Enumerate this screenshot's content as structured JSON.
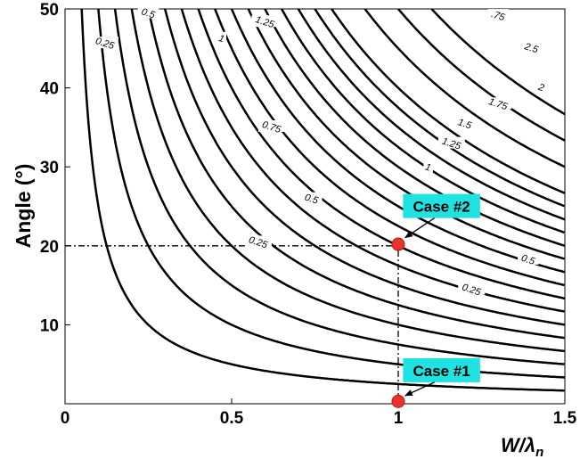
{
  "chart_data": {
    "type": "line",
    "subtype": "contour",
    "title": "",
    "xlabel": "W/λ",
    "xlabel_subscript": "n",
    "ylabel": "Angle (°)",
    "xlim": [
      0,
      1.5
    ],
    "ylim": [
      0,
      50
    ],
    "x_ticks": [
      "0",
      "0.5",
      "1",
      "1.5"
    ],
    "y_ticks": [
      "10",
      "20",
      "30",
      "40",
      "50"
    ],
    "grid": false,
    "contour_constants": [
      0.125,
      0.25,
      0.375,
      0.5,
      0.625,
      0.75,
      0.875,
      1.0,
      1.125,
      1.25,
      1.375,
      1.5,
      1.625,
      1.75,
      1.875,
      2.0,
      2.25,
      2.5,
      2.75
    ],
    "contour_labels": [
      {
        "text": "0.25",
        "x": 0.12,
        "y": 45.7
      },
      {
        "text": "0.5",
        "x": 0.25,
        "y": 49.5
      },
      {
        "text": "1",
        "x": 0.47,
        "y": 46.3
      },
      {
        "text": "1.25",
        "x": 0.6,
        "y": 48.4
      },
      {
        "text": "0.75",
        "x": 0.62,
        "y": 35.1
      },
      {
        "text": "0.5",
        "x": 0.74,
        "y": 26.0
      },
      {
        "text": "0.25",
        "x": 0.58,
        "y": 20.5
      },
      {
        "text": ".75",
        "x": 1.3,
        "y": 49.2
      },
      {
        "text": "2.5",
        "x": 1.4,
        "y": 45.1
      },
      {
        "text": "2",
        "x": 1.43,
        "y": 40.1
      },
      {
        "text": "1.75",
        "x": 1.3,
        "y": 38.0
      },
      {
        "text": "1.5",
        "x": 1.2,
        "y": 35.5
      },
      {
        "text": "1.25",
        "x": 1.16,
        "y": 33.0
      },
      {
        "text": "1",
        "x": 1.09,
        "y": 30.0
      },
      {
        "text": "0.5",
        "x": 1.39,
        "y": 18.3
      },
      {
        "text": "0.25",
        "x": 1.22,
        "y": 14.5
      }
    ],
    "reference_lines": [
      {
        "x": [
          0,
          1.0
        ],
        "y": [
          20,
          20
        ],
        "style": "dash-dot"
      },
      {
        "x": [
          1.0,
          1.0
        ],
        "y": [
          0,
          20
        ],
        "style": "dash-dot"
      }
    ],
    "points": [
      {
        "name": "Case #1",
        "x": 1.0,
        "y": 0.3,
        "color": "#e8342c"
      },
      {
        "name": "Case #2",
        "x": 1.0,
        "y": 20.2,
        "color": "#e8342c"
      }
    ],
    "annotations": [
      {
        "text": "Case #2",
        "x": 1.13,
        "y": 25.1,
        "arrow_to": [
          1.01,
          20.8
        ],
        "bg": "#1fe3e3"
      },
      {
        "text": "Case #1",
        "x": 1.13,
        "y": 4.3,
        "arrow_to": [
          1.01,
          0.8
        ],
        "bg": "#1fe3e3"
      }
    ]
  }
}
